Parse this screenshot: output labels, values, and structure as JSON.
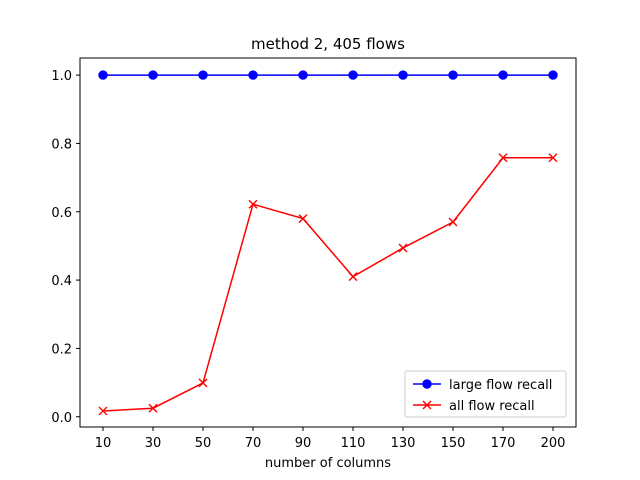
{
  "chart_data": {
    "type": "line",
    "title": "method 2, 405 flows",
    "xlabel": "number of columns",
    "ylabel": "",
    "categories": [
      "10",
      "30",
      "50",
      "70",
      "90",
      "110",
      "130",
      "150",
      "170",
      "200"
    ],
    "yticks": [
      "0.0",
      "0.2",
      "0.4",
      "0.6",
      "0.8",
      "1.0"
    ],
    "ylim": [
      -0.03,
      1.05
    ],
    "grid": false,
    "legend_position": "lower-right",
    "series": [
      {
        "name": "large flow recall",
        "color": "#0000ff",
        "marker": "circle",
        "values": [
          1.0,
          1.0,
          1.0,
          1.0,
          1.0,
          1.0,
          1.0,
          1.0,
          1.0,
          1.0
        ]
      },
      {
        "name": "all flow recall",
        "color": "#ff0000",
        "marker": "x",
        "values": [
          0.017,
          0.025,
          0.099,
          0.622,
          0.58,
          0.41,
          0.494,
          0.57,
          0.758,
          0.758
        ]
      }
    ]
  }
}
